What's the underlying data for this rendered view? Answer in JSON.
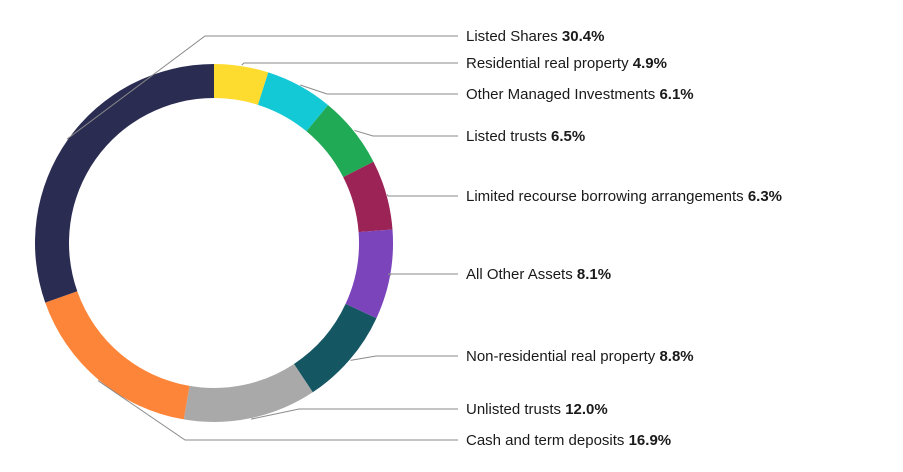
{
  "chart_data": {
    "type": "pie",
    "donut": true,
    "categories": [
      "Residential real property",
      "Other Managed Investments",
      "Listed trusts",
      "Limited recourse borrowing arrangements",
      "All Other Assets",
      "Non-residential real property",
      "Unlisted trusts",
      "Cash and term deposits",
      "Listed Shares"
    ],
    "values": [
      4.9,
      6.1,
      6.5,
      6.3,
      8.1,
      8.8,
      12.0,
      16.9,
      30.4
    ],
    "value_labels": [
      "4.9%",
      "6.1%",
      "6.5%",
      "6.3%",
      "8.1%",
      "8.8%",
      "12.0%",
      "16.9%",
      "30.4%"
    ],
    "colors": [
      "#fddb2f",
      "#14c9d6",
      "#21aa56",
      "#9b2356",
      "#7b44bb",
      "#155663",
      "#a9a9a9",
      "#fd853a",
      "#2a2c52"
    ],
    "title": "",
    "legend": "right-side leader-line labels"
  }
}
